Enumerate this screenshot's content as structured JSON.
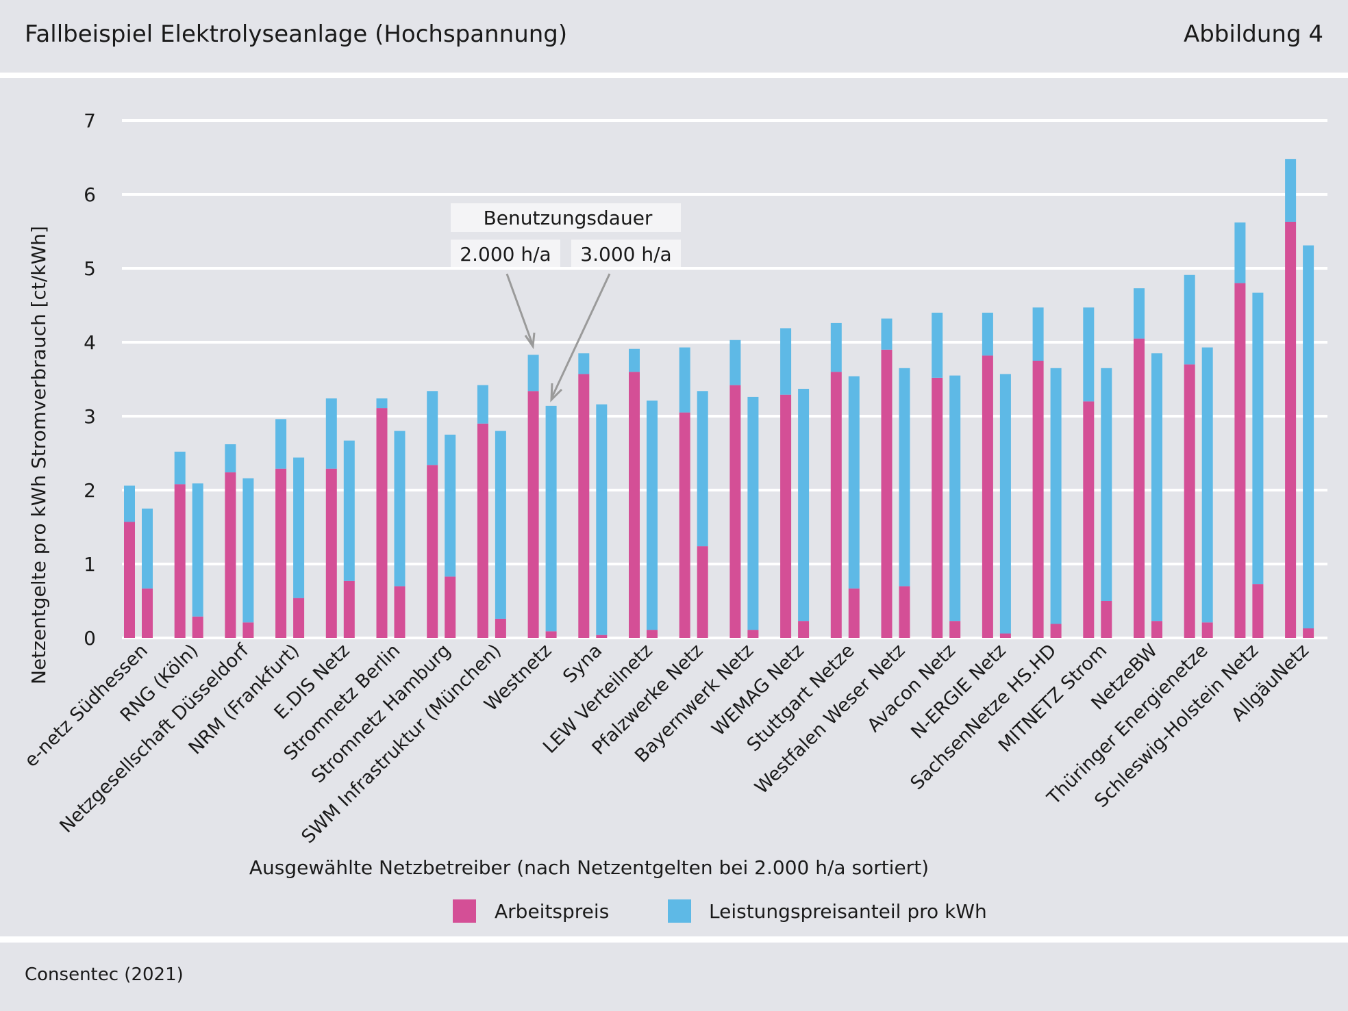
{
  "header": {
    "title": "Fallbeispiel Elektrolyseanlage (Hochspannung)",
    "figure_label": "Abbildung 4"
  },
  "footer": {
    "source": "Consentec (2021)"
  },
  "annotation": {
    "title": "Benutzungsdauer",
    "label_a": "2.000 h/a",
    "label_b": "3.000 h/a"
  },
  "colors": {
    "arbeitspreis": "#d44f96",
    "leistungspreis": "#5eb9e6",
    "grid": "#ffffff",
    "panel": "#e3e4e9"
  },
  "chart_data": {
    "type": "bar",
    "stacked": true,
    "grouped": true,
    "xlabel": "Ausgewählte Netzbetreiber (nach Netzentgelten bei 2.000 h/a sortiert)",
    "ylabel": "Netzentgelte pro kWh Stromverbrauch [ct/kWh]",
    "ylim": [
      0,
      7
    ],
    "yticks": [
      0,
      1,
      2,
      3,
      4,
      5,
      6,
      7
    ],
    "grid": true,
    "legend": {
      "placement": "bottom-center",
      "entries": [
        "Arbeitspreis",
        "Leistungspreisanteil pro kWh"
      ]
    },
    "series": [
      {
        "name": "Arbeitspreis",
        "color": "#d44f96"
      },
      {
        "name": "Leistungspreisanteil pro kWh",
        "color": "#5eb9e6"
      }
    ],
    "categories": [
      "e-netz Südhessen",
      "RNG (Köln)",
      "Netzgesellschaft Düsseldorf",
      "NRM (Frankfurt)",
      "E.DIS Netz",
      "Stromnetz Berlin",
      "Stromnetz Hamburg",
      "SWM Infrastruktur (München)",
      "Westnetz",
      "Syna",
      "LEW Verteilnetz",
      "Pfalzwerke Netz",
      "Bayernwerk Netz",
      "WEMAG Netz",
      "Stuttgart Netze",
      "Westfalen Weser Netz",
      "Avacon Netz",
      "N-ERGIE Netz",
      "SachsenNetze HS.HD",
      "MITNETZ Strom",
      "NetzeBW",
      "Thüringer Energienetze",
      "Schleswig-Holstein Netz",
      "AllgäuNetz"
    ],
    "groups": [
      "2.000 h/a",
      "3.000 h/a"
    ],
    "values_2000": {
      "arbeitspreis": [
        1.57,
        2.08,
        2.24,
        2.29,
        2.29,
        3.11,
        2.34,
        2.9,
        3.34,
        3.57,
        3.6,
        3.05,
        3.42,
        3.29,
        3.6,
        3.9,
        3.52,
        3.82,
        3.75,
        3.2,
        4.05,
        3.7,
        4.8,
        5.63
      ],
      "leistungspreis": [
        0.49,
        0.44,
        0.38,
        0.67,
        0.95,
        0.13,
        1.0,
        0.52,
        0.49,
        0.28,
        0.31,
        0.88,
        0.61,
        0.9,
        0.66,
        0.42,
        0.88,
        0.58,
        0.72,
        1.27,
        0.68,
        1.21,
        0.82,
        0.85
      ]
    },
    "values_3000": {
      "arbeitspreis": [
        0.67,
        0.29,
        0.21,
        0.54,
        0.77,
        0.7,
        0.83,
        0.26,
        0.09,
        0.04,
        0.11,
        1.24,
        0.11,
        0.23,
        0.67,
        0.7,
        0.23,
        0.06,
        0.19,
        0.5,
        0.23,
        0.21,
        0.73,
        0.13
      ],
      "leistungspreis": [
        1.08,
        1.8,
        1.95,
        1.9,
        1.9,
        2.1,
        1.92,
        2.54,
        3.05,
        3.12,
        3.1,
        2.1,
        3.15,
        3.14,
        2.87,
        2.95,
        3.32,
        3.51,
        3.46,
        3.15,
        3.62,
        3.72,
        3.94,
        5.18
      ]
    }
  }
}
